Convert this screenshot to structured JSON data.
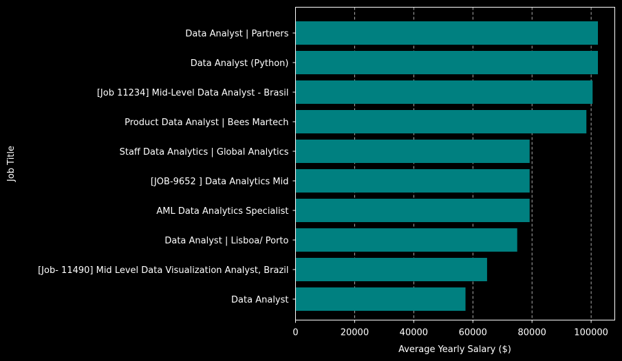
{
  "chart_data": {
    "type": "bar",
    "orientation": "horizontal",
    "title": "",
    "xlabel": "Average Yearly Salary ($)",
    "ylabel": "Job Title",
    "xlim": [
      0,
      108000
    ],
    "xticks": [
      0,
      20000,
      40000,
      60000,
      80000,
      100000
    ],
    "grid": "x-dashed",
    "categories": [
      "Data Analyst | Partners",
      "Data Analyst (Python)",
      "[Job 11234] Mid-Level Data Analyst - Brasil",
      "Product Data Analyst | Bees Martech",
      "Staff Data Analytics | Global Analytics",
      "[JOB-9652 ] Data Analytics Mid",
      "AML Data Analytics Specialist",
      "Data Analyst | Lisboa/ Porto",
      "[Job- 11490] Mid Level Data Visualization Analyst, Brazil",
      "Data Analyst"
    ],
    "values": [
      102300,
      102300,
      100500,
      98400,
      79200,
      79200,
      79200,
      75000,
      64800,
      57500
    ],
    "colors": {
      "bar": "#008080",
      "background": "#000000",
      "text": "#ffffff",
      "grid": "#d9d9d9"
    }
  }
}
